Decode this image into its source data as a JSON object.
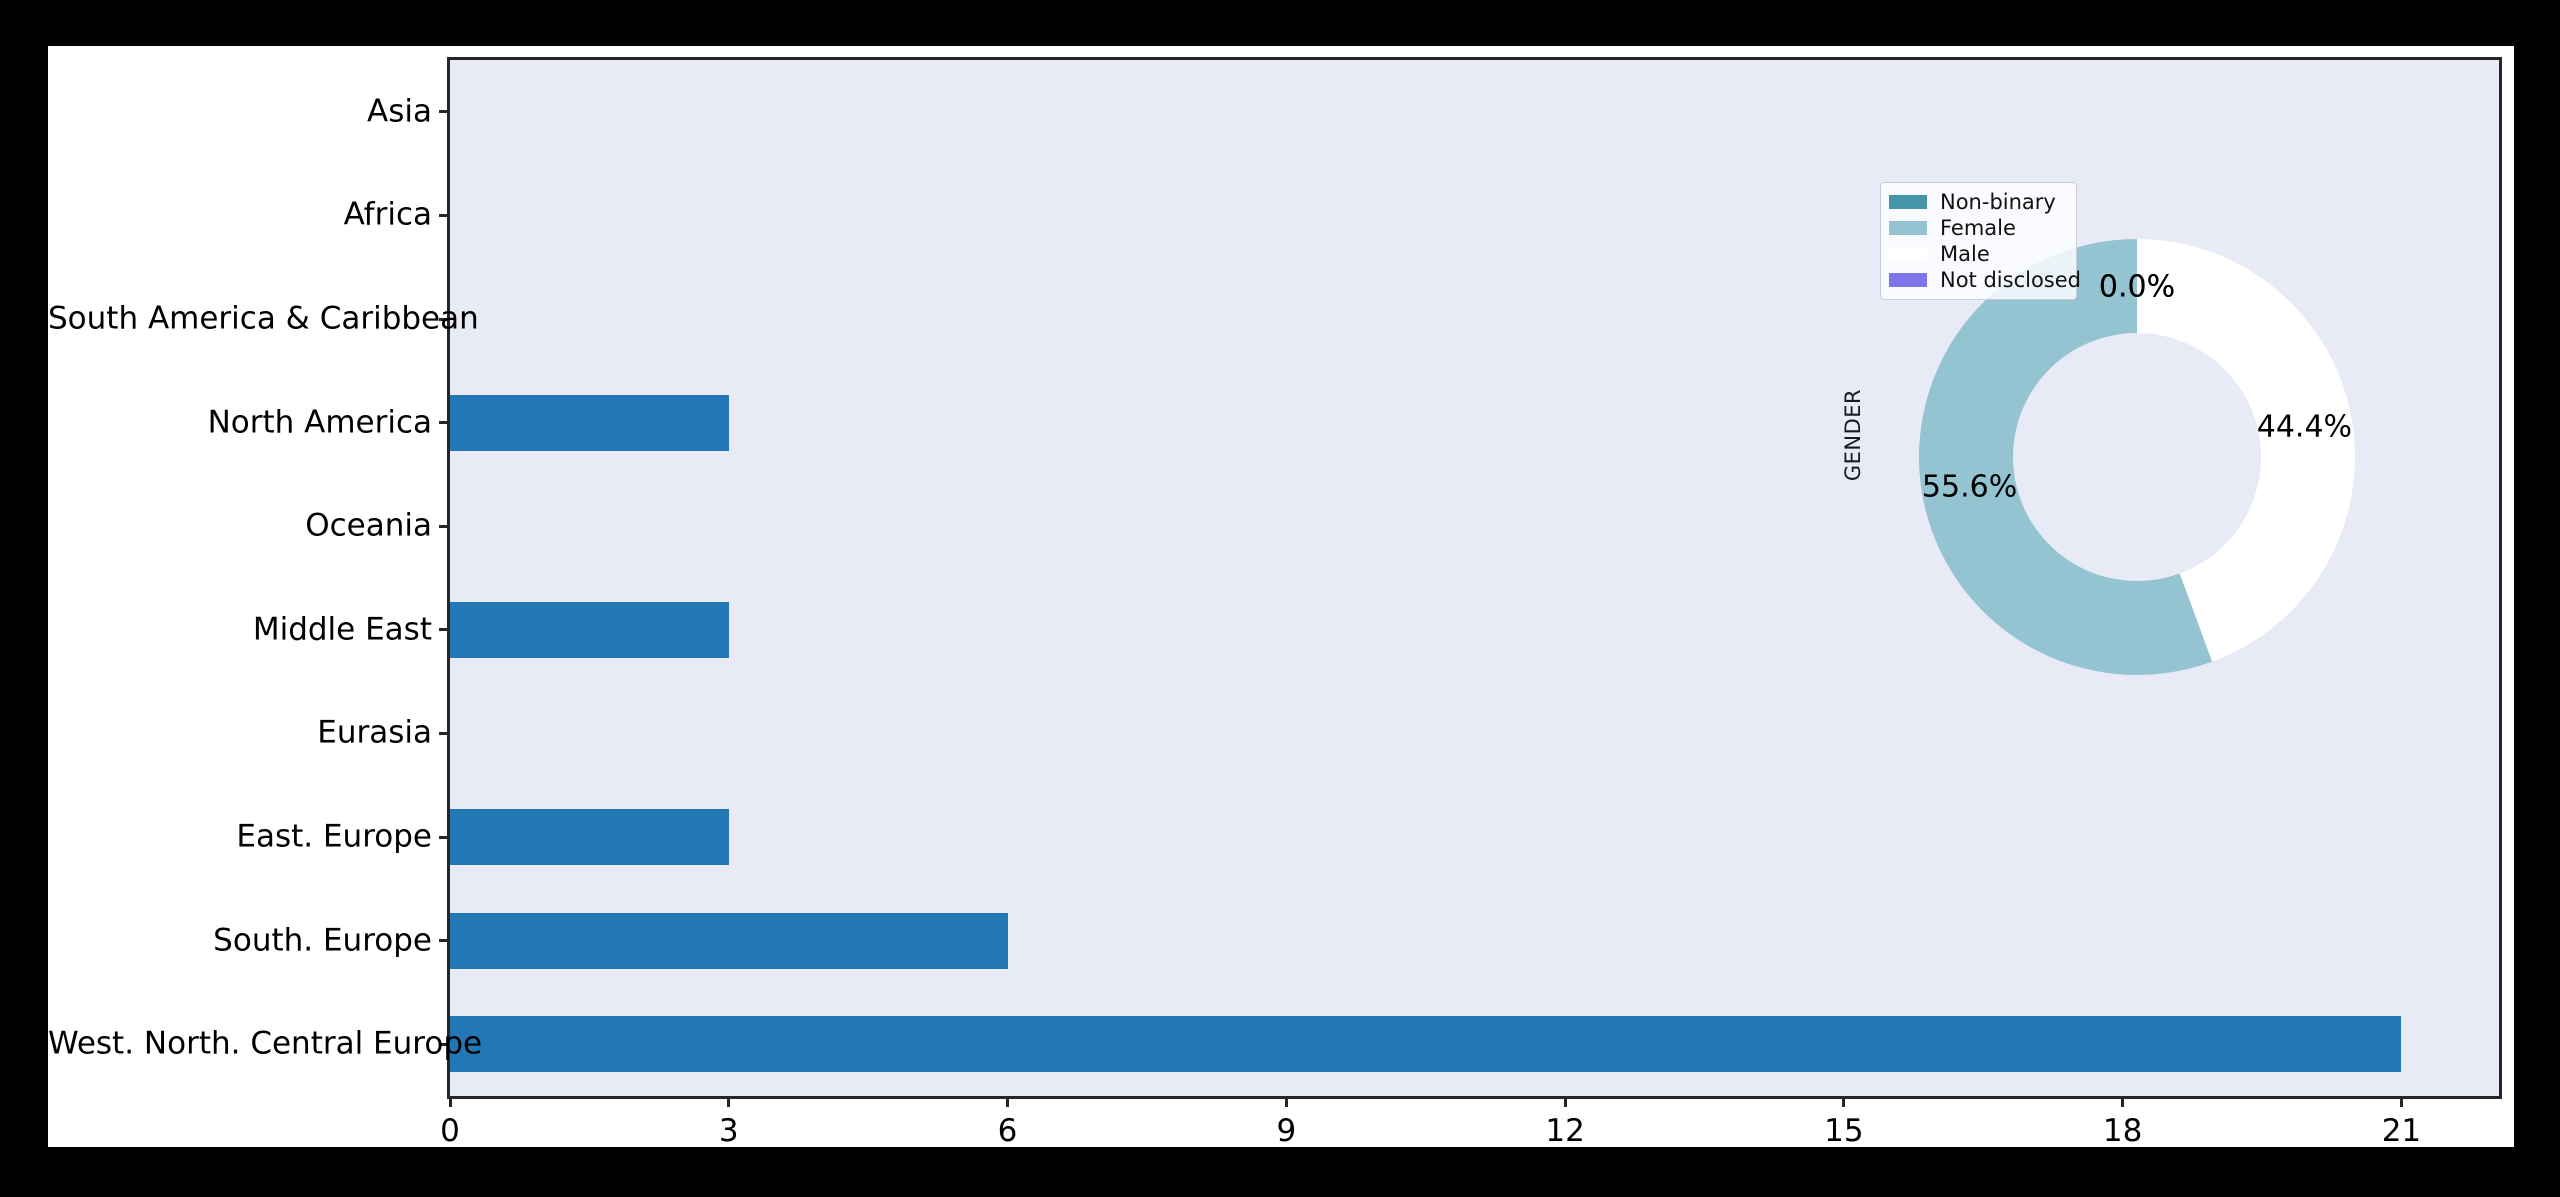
{
  "figure": {
    "canvas_background": "#000000",
    "figure_background": "#ffffff"
  },
  "chart_data": [
    {
      "type": "bar",
      "orientation": "horizontal",
      "title": "",
      "xlabel": "",
      "ylabel": "",
      "plot_background": "#e8ebf6",
      "bar_color": "#2277b4",
      "grid": false,
      "categories": [
        "Asia",
        "Africa",
        "South America & Caribbean",
        "North America",
        "Oceania",
        "Middle East",
        "Eurasia",
        "East. Europe",
        "South. Europe",
        "West. North. Central Europe"
      ],
      "values": [
        0,
        0,
        0,
        3,
        0,
        3,
        0,
        3,
        6,
        21
      ],
      "xtick_labels": [
        "0",
        "3",
        "6",
        "9",
        "12",
        "15",
        "18",
        "21"
      ],
      "xticks": [
        0,
        3,
        6,
        9,
        12,
        15,
        18,
        21
      ],
      "xlim": [
        0,
        22.05
      ]
    },
    {
      "type": "pie",
      "subtype": "donut",
      "title": "",
      "ylabel": "GENDER",
      "start_angle": 90,
      "counterclockwise": true,
      "legend_position": "upper left",
      "slices": [
        {
          "label": "Non-binary",
          "percent": 0.0,
          "color": "#4795a8",
          "pct_label": "0.0%"
        },
        {
          "label": "Female",
          "percent": 55.6,
          "color": "#94c3d2",
          "pct_label": "55.6%"
        },
        {
          "label": "Male",
          "percent": 44.4,
          "color": "#ffffff",
          "pct_label": "44.4%"
        },
        {
          "label": "Not disclosed",
          "percent": 0.0,
          "color": "#7e74ec",
          "pct_label": "0.0%"
        }
      ]
    }
  ]
}
